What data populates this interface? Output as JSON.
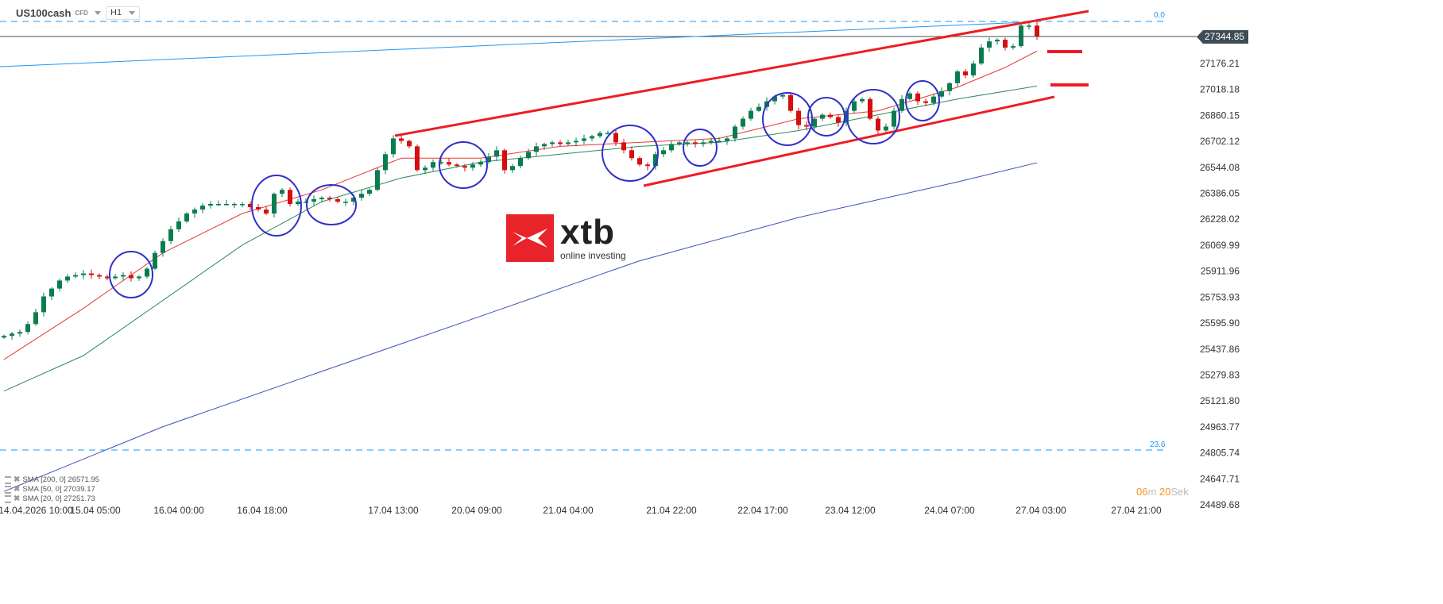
{
  "header": {
    "symbol": "US100cash",
    "instrument_type": "CFD",
    "timeframe": "H1"
  },
  "current_price": "27344.85",
  "countdown": {
    "minutes": "06",
    "m_label": "m ",
    "seconds": "20",
    "s_label": "Sek"
  },
  "watermark": {
    "brand": "xtb",
    "tagline": "online investing"
  },
  "fib_levels": [
    {
      "label": "0.0"
    },
    {
      "label": "23.6"
    }
  ],
  "legend": [
    {
      "label": "SMA [200, 0] 26571.95"
    },
    {
      "label": "SMA [50, 0] 27039.17"
    },
    {
      "label": "SMA [20, 0] 27251.73"
    }
  ],
  "colors": {
    "up": "#0a7d4f",
    "down": "#d50f0f",
    "sma20": "#e53935",
    "sma50": "#2e8b57",
    "sma200": "#3f51b5",
    "drawing_red": "#ee1c25",
    "circle": "#3030c8",
    "fib": "#2196f3"
  },
  "chart_data": {
    "type": "candlestick",
    "yaxis_ticks": [
      "27176.21",
      "27018.18",
      "26860.15",
      "26702.12",
      "26544.08",
      "26386.05",
      "26228.02",
      "26069.99",
      "25911.96",
      "25753.93",
      "25595.90",
      "25437.86",
      "25279.83",
      "25121.80",
      "24963.77",
      "24805.74",
      "24647.71",
      "24489.68"
    ],
    "xaxis_ticks": [
      "14.04.2026 10:00",
      "15.04 05:00",
      "16.04 00:00",
      "16.04 18:00",
      "17.04 13:00",
      "20.04 09:00",
      "21.04 04:00",
      "21.04 22:00",
      "22.04 17:00",
      "23.04 12:00",
      "24.04 07:00",
      "27.04 03:00",
      "27.04 21:00"
    ],
    "ylim": [
      24489.68,
      27420
    ],
    "close": [
      25518,
      25532,
      25542,
      25590,
      25662,
      25758,
      25806,
      25855,
      25879,
      25888,
      25898,
      25888,
      25879,
      25869,
      25879,
      25888,
      25869,
      25879,
      25927,
      26023,
      26095,
      26167,
      26215,
      26263,
      26287,
      26311,
      26321,
      26321,
      26321,
      26321,
      26321,
      26302,
      26287,
      26263,
      26383,
      26407,
      26321,
      26335,
      26335,
      26350,
      26359,
      26350,
      26335,
      26335,
      26359,
      26383,
      26407,
      26527,
      26624,
      26720,
      26705,
      26672,
      26527,
      26542,
      26576,
      26576,
      26561,
      26552,
      26542,
      26561,
      26576,
      26609,
      26648,
      26527,
      26552,
      26600,
      26638,
      26672,
      26686,
      26696,
      26686,
      26696,
      26705,
      26720,
      26734,
      26753,
      26753,
      26696,
      26648,
      26600,
      26561,
      26552,
      26624,
      26648,
      26686,
      26696,
      26696,
      26686,
      26696,
      26705,
      26705,
      26720,
      26792,
      26840,
      26888,
      26912,
      26946,
      26975,
      26984,
      26888,
      26801,
      26792,
      26840,
      26864,
      26850,
      26816,
      26888,
      26946,
      26960,
      26840,
      26768,
      26792,
      26888,
      26960,
      26994,
      26946,
      26936,
      26975,
      27008,
      27056,
      27128,
      27104,
      27176,
      27273,
      27311,
      27321,
      27273,
      27282,
      27407,
      27407,
      27340
    ],
    "series": [
      {
        "name": "SMA [20, 0]",
        "index": [
          0,
          10,
          20,
          30,
          40,
          50,
          60,
          70,
          80,
          90,
          100,
          110,
          120,
          126,
          130
        ],
        "values": [
          25374,
          25686,
          26023,
          26263,
          26407,
          26600,
          26600,
          26672,
          26696,
          26720,
          26840,
          26888,
          27032,
          27152,
          27251.73
        ]
      },
      {
        "name": "SMA [50, 0]",
        "index": [
          0,
          10,
          20,
          30,
          40,
          50,
          60,
          70,
          80,
          90,
          100,
          110,
          120,
          130
        ],
        "values": [
          25182,
          25398,
          25734,
          26071,
          26335,
          26479,
          26576,
          26624,
          26672,
          26696,
          26768,
          26864,
          26960,
          27039.17
        ]
      },
      {
        "name": "SMA [200, 0]",
        "index": [
          0,
          20,
          40,
          60,
          80,
          100,
          120,
          130
        ],
        "values": [
          24571,
          24965,
          25302,
          25638,
          25975,
          26239,
          26455,
          26571.95
        ]
      }
    ]
  }
}
